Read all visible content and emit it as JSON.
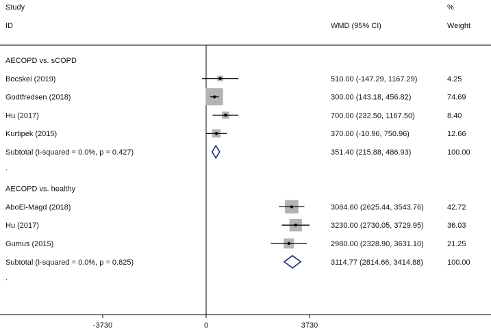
{
  "chart_data": {
    "type": "forest",
    "header": {
      "study_top": "Study",
      "study_bottom": "ID",
      "effect_col": "WMD (95% CI)",
      "weight_top": "%",
      "weight_bottom": "Weight"
    },
    "xlim": [
      -3730,
      3730
    ],
    "x_ticks": [
      {
        "value": -3730,
        "label": "-3730"
      },
      {
        "value": 0,
        "label": "0"
      },
      {
        "value": 3730,
        "label": "3730"
      }
    ],
    "groups": [
      {
        "title": "AECOPD vs. sCOPD",
        "studies": [
          {
            "name": "Bocskei (2019)",
            "estimate": 510.0,
            "lower": -147.29,
            "upper": 1167.29,
            "ci_text": "510.00 (-147.29, 1167.29)",
            "weight": 4.25,
            "weight_text": "4.25"
          },
          {
            "name": "Godtfredsen (2018)",
            "estimate": 300.0,
            "lower": 143.18,
            "upper": 456.82,
            "ci_text": "300.00 (143.18, 456.82)",
            "weight": 74.69,
            "weight_text": "74.69"
          },
          {
            "name": "Hu (2017)",
            "estimate": 700.0,
            "lower": 232.5,
            "upper": 1167.5,
            "ci_text": "700.00 (232.50, 1167.50)",
            "weight": 8.4,
            "weight_text": "8.40"
          },
          {
            "name": "Kurtipek (2015)",
            "estimate": 370.0,
            "lower": -10.96,
            "upper": 750.96,
            "ci_text": "370.00 (-10.96, 750.96)",
            "weight": 12.66,
            "weight_text": "12.66"
          }
        ],
        "subtotal": {
          "label": "Subtotal  (I-squared = 0.0%, p = 0.427)",
          "estimate": 351.4,
          "lower": 215.88,
          "upper": 486.93,
          "ci_text": "351.40 (215.88, 486.93)",
          "weight_text": "100.00"
        },
        "spacer": "."
      },
      {
        "title": "AECOPD vs. healthy",
        "studies": [
          {
            "name": "AboEl-Magd (2018)",
            "estimate": 3084.6,
            "lower": 2625.44,
            "upper": 3543.76,
            "ci_text": "3084.60 (2625.44, 3543.76)",
            "weight": 42.72,
            "weight_text": "42.72"
          },
          {
            "name": "Hu (2017)",
            "estimate": 3230.0,
            "lower": 2730.05,
            "upper": 3729.95,
            "ci_text": "3230.00 (2730.05, 3729.95)",
            "weight": 36.03,
            "weight_text": "36.03"
          },
          {
            "name": "Gumus (2015)",
            "estimate": 2980.0,
            "lower": 2328.9,
            "upper": 3631.1,
            "ci_text": "2980.00 (2328.90, 3631.10)",
            "weight": 21.25,
            "weight_text": "21.25"
          }
        ],
        "subtotal": {
          "label": "Subtotal  (I-squared = 0.0%, p = 0.825)",
          "estimate": 3114.77,
          "lower": 2814.66,
          "upper": 3414.88,
          "ci_text": "3114.77 (2814.66, 3414.88)",
          "weight_text": "100.00"
        },
        "spacer": "."
      }
    ],
    "colors": {
      "box": "#b3b3b3",
      "diamond": "#1a2a6c",
      "line": "#000000",
      "text": "#111111"
    }
  }
}
